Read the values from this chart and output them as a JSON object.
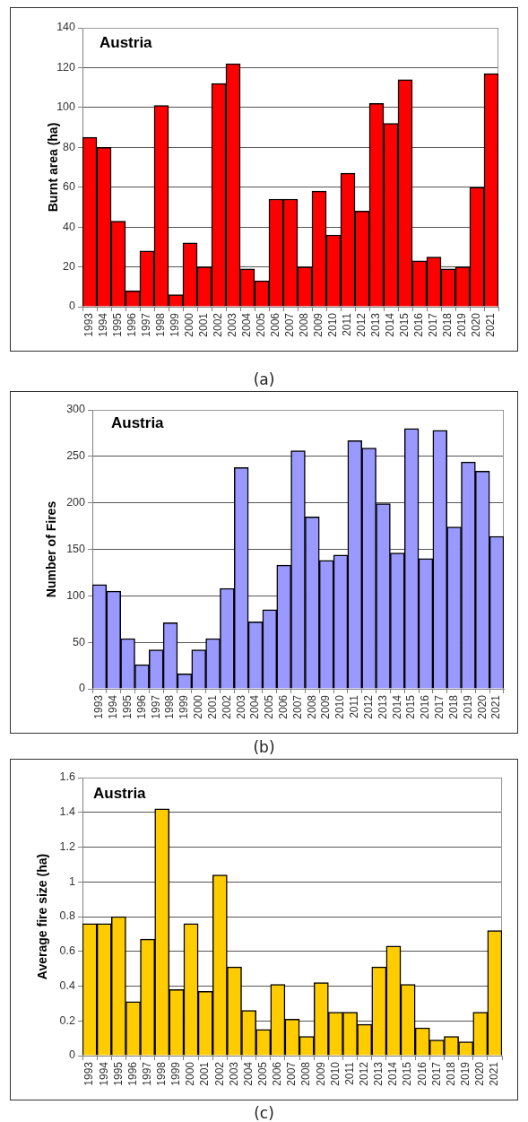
{
  "chart_data": [
    {
      "type": "bar",
      "title": "Austria",
      "ylabel": "Burnt area (ha)",
      "categories": [
        "1993",
        "1994",
        "1995",
        "1996",
        "1997",
        "1998",
        "1999",
        "2000",
        "2001",
        "2002",
        "2003",
        "2004",
        "2005",
        "2006",
        "2007",
        "2008",
        "2009",
        "2010",
        "2011",
        "2012",
        "2013",
        "2014",
        "2015",
        "2016",
        "2017",
        "2018",
        "2019",
        "2020",
        "2021"
      ],
      "values": [
        85,
        80,
        43,
        8,
        28,
        101,
        6,
        32,
        20,
        112,
        122,
        19,
        13,
        54,
        54,
        20,
        58,
        36,
        67,
        48,
        102,
        92,
        114,
        23,
        25,
        19,
        20,
        60,
        117
      ],
      "color": "#ff0000",
      "ylim": [
        0,
        140
      ],
      "yticks": [
        0,
        20,
        40,
        60,
        80,
        100,
        120,
        140
      ],
      "grid": "y",
      "annotations": [
        "(a)"
      ]
    },
    {
      "type": "bar",
      "title": "Austria",
      "ylabel": "Number of Fires",
      "categories": [
        "1993",
        "1994",
        "1995",
        "1996",
        "1997",
        "1998",
        "1999",
        "2000",
        "2001",
        "2002",
        "2003",
        "2004",
        "2005",
        "2006",
        "2007",
        "2008",
        "2009",
        "2010",
        "2011",
        "2012",
        "2013",
        "2014",
        "2015",
        "2016",
        "2017",
        "2018",
        "2019",
        "2020",
        "2021"
      ],
      "values": [
        112,
        105,
        54,
        26,
        42,
        71,
        16,
        42,
        54,
        108,
        238,
        72,
        85,
        133,
        256,
        185,
        138,
        144,
        267,
        259,
        199,
        146,
        280,
        140,
        278,
        174,
        244,
        234,
        164
      ],
      "color": "#9999ff",
      "ylim": [
        0,
        300
      ],
      "yticks": [
        0,
        50,
        100,
        150,
        200,
        250,
        300
      ],
      "grid": "y",
      "annotations": [
        "(b)"
      ]
    },
    {
      "type": "bar",
      "title": "Austria",
      "ylabel": "Average fire size (ha)",
      "categories": [
        "1993",
        "1994",
        "1995",
        "1996",
        "1997",
        "1998",
        "1999",
        "2000",
        "2001",
        "2002",
        "2003",
        "2004",
        "2005",
        "2006",
        "2007",
        "2008",
        "2009",
        "2010",
        "2011",
        "2012",
        "2013",
        "2014",
        "2015",
        "2016",
        "2017",
        "2018",
        "2019",
        "2020",
        "2021"
      ],
      "values": [
        0.76,
        0.76,
        0.8,
        0.31,
        0.67,
        1.42,
        0.38,
        0.76,
        0.37,
        1.04,
        0.51,
        0.26,
        0.15,
        0.41,
        0.21,
        0.11,
        0.42,
        0.25,
        0.25,
        0.18,
        0.51,
        0.63,
        0.41,
        0.16,
        0.09,
        0.11,
        0.08,
        0.25,
        0.72
      ],
      "color": "#ffcc00",
      "ylim": [
        0,
        1.6
      ],
      "yticks": [
        0,
        0.2,
        0.4,
        0.6,
        0.8,
        1,
        1.2,
        1.4,
        1.6
      ],
      "grid": "y",
      "annotations": [
        "(c)"
      ]
    }
  ]
}
